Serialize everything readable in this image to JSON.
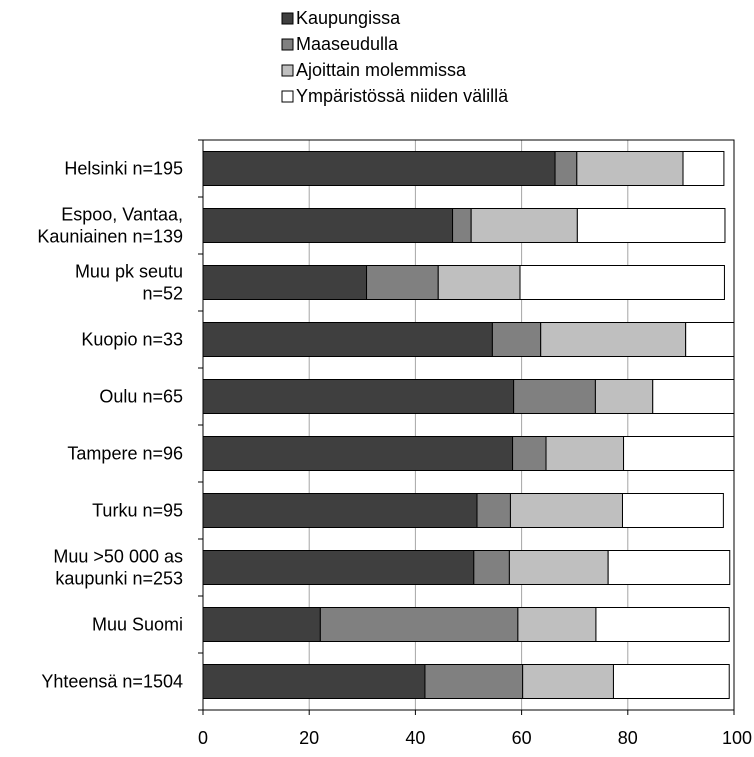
{
  "chart_data": {
    "type": "bar",
    "orientation": "horizontal",
    "stacked": true,
    "title": "",
    "xlabel": "",
    "ylabel": "",
    "xlim": [
      0,
      100
    ],
    "x_ticks": [
      "0",
      "20",
      "40",
      "60",
      "80",
      "100"
    ],
    "grid": "vertical",
    "legend": "top-center",
    "categories": [
      [
        "Helsinki n=195"
      ],
      [
        "Espoo, Vantaa,",
        "Kauniainen n=139"
      ],
      [
        "Muu pk seutu",
        "n=52"
      ],
      [
        "Kuopio n=33"
      ],
      [
        "Oulu n=65"
      ],
      [
        "Tampere n=96"
      ],
      [
        "Turku n=95"
      ],
      [
        "Muu >50 000 as",
        "kaupunki n=253"
      ],
      [
        "Muu Suomi"
      ],
      [
        "Yhteensä n=1504"
      ]
    ],
    "series": [
      {
        "name": "Kaupungissa",
        "color": "#3f3f3f",
        "values": [
          66.3,
          47.0,
          30.8,
          54.5,
          58.5,
          58.3,
          51.6,
          51.0,
          22.1,
          41.8
        ]
      },
      {
        "name": "Maaseudulla",
        "color": "#808080",
        "values": [
          4.1,
          3.5,
          13.5,
          9.1,
          15.4,
          6.3,
          6.3,
          6.7,
          37.2,
          18.4
        ]
      },
      {
        "name": "Ajoittain molemmissa",
        "color": "#bfbfbf",
        "values": [
          20.0,
          20.0,
          15.4,
          27.3,
          10.8,
          14.6,
          21.1,
          18.6,
          14.7,
          17.1
        ]
      },
      {
        "name": "Ympäristössä niiden välillä",
        "color": "#ffffff",
        "values": [
          7.7,
          27.8,
          38.5,
          9.1,
          15.3,
          20.8,
          19.0,
          22.9,
          25.1,
          21.8
        ]
      }
    ]
  }
}
